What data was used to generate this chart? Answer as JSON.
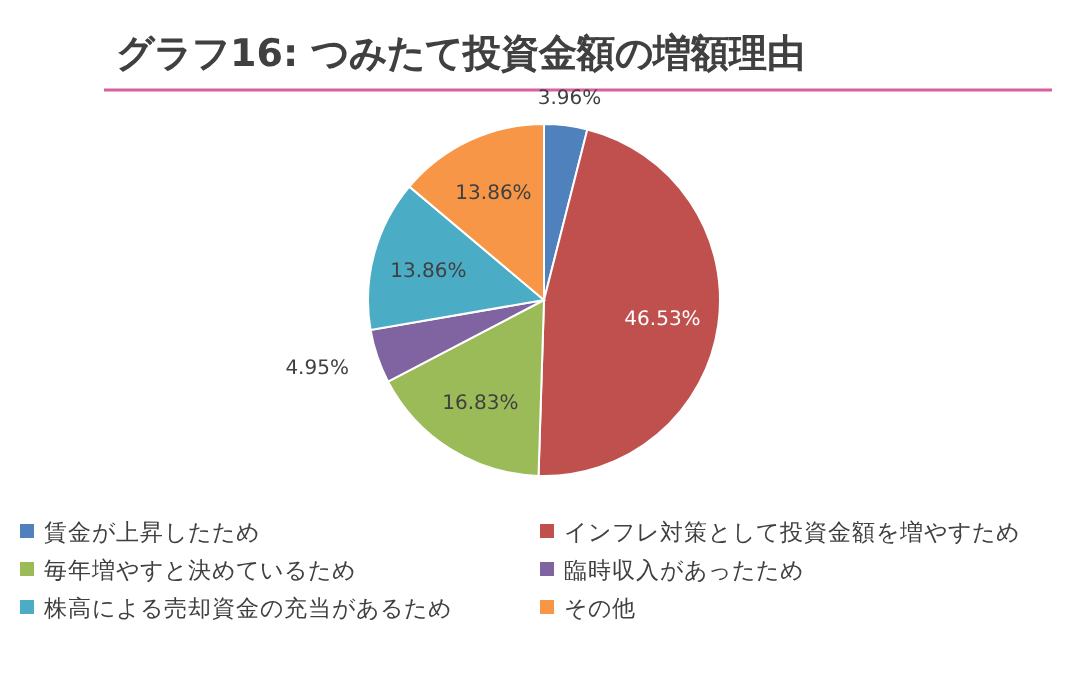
{
  "chart_data": {
    "type": "pie",
    "title": "グラフ16: つみたて投資金額の増額理由",
    "categories": [
      "賃金が上昇したため",
      "インフレ対策として投資金額を増やすため",
      "毎年増やすと決めているため",
      "臨時収入があったため",
      "株高による売却資金の充当があるため",
      "その他"
    ],
    "values": [
      3.96,
      46.53,
      16.83,
      4.95,
      13.86,
      13.86
    ],
    "value_labels": [
      "3.96%",
      "46.53%",
      "16.83%",
      "4.95%",
      "13.86%",
      "13.86%"
    ],
    "colors": [
      "#4f81bd",
      "#c0504d",
      "#9bbb59",
      "#8064a2",
      "#4bacc6",
      "#f79646"
    ],
    "legend": "bottom"
  }
}
